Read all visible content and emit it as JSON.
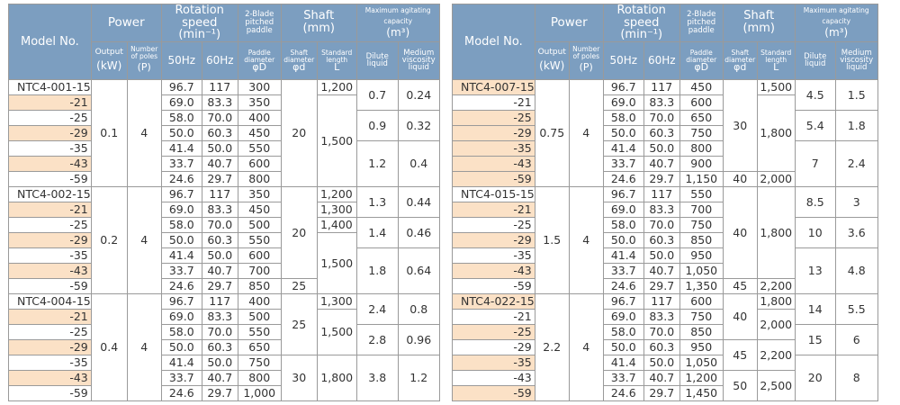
{
  "header": {
    "model": "Model No.",
    "power": "Power",
    "rotation": "Rotation speed",
    "rotation_unit": "(min⁻¹)",
    "blade": "2-Blade pitched paddle",
    "shaft": "Shaft",
    "shaft_unit": "(mm)",
    "agitating": "Maximum agitating capacity",
    "agitating_unit": "(m³)",
    "output": "Output",
    "output_unit": "(kW)",
    "poles": "Number of poles",
    "poles_unit": "(P)",
    "hz50": "50Hz",
    "hz60": "60Hz",
    "paddle_diameter": "Paddle diameter",
    "paddle_symbol": "φD",
    "shaft_diameter": "Shaft diameter",
    "shaft_symbol": "φd",
    "standard_length": "Standard length",
    "length_symbol": "L",
    "dilute": "Dilute liquid",
    "medium": "Medium viscosity liquid"
  },
  "left_table": {
    "groups": [
      {
        "output": "0.1",
        "poles": "4",
        "rows": [
          {
            "model": "NTC4-001-15",
            "hz50": "96.7",
            "hz60": "117",
            "paddle": "300"
          },
          {
            "model": "-21",
            "hz50": "69.0",
            "hz60": "83.3",
            "paddle": "350"
          },
          {
            "model": "-25",
            "hz50": "58.0",
            "hz60": "70.0",
            "paddle": "400"
          },
          {
            "model": "-29",
            "hz50": "50.0",
            "hz60": "60.3",
            "paddle": "450"
          },
          {
            "model": "-35",
            "hz50": "41.4",
            "hz60": "50.0",
            "paddle": "550"
          },
          {
            "model": "-43",
            "hz50": "33.7",
            "hz60": "40.7",
            "paddle": "600"
          },
          {
            "model": "-59",
            "hz50": "24.6",
            "hz60": "29.7",
            "paddle": "800"
          }
        ],
        "shaft_diameter": [
          "20"
        ],
        "standard_length": [
          "1,200",
          "1,500"
        ],
        "dilute": [
          "0.7",
          "0.9",
          "1.2"
        ],
        "medium": [
          "0.24",
          "0.32",
          "0.4"
        ]
      },
      {
        "output": "0.2",
        "poles": "4",
        "rows": [
          {
            "model": "NTC4-002-15",
            "hz50": "96.7",
            "hz60": "117",
            "paddle": "350"
          },
          {
            "model": "-21",
            "hz50": "69.0",
            "hz60": "83.3",
            "paddle": "450"
          },
          {
            "model": "-25",
            "hz50": "58.0",
            "hz60": "70.0",
            "paddle": "500"
          },
          {
            "model": "-29",
            "hz50": "50.0",
            "hz60": "60.3",
            "paddle": "550"
          },
          {
            "model": "-35",
            "hz50": "41.4",
            "hz60": "50.0",
            "paddle": "600"
          },
          {
            "model": "-43",
            "hz50": "33.7",
            "hz60": "40.7",
            "paddle": "700"
          },
          {
            "model": "-59",
            "hz50": "24.6",
            "hz60": "29.7",
            "paddle": "850"
          }
        ],
        "shaft_diameter": [
          "20",
          "25"
        ],
        "standard_length": [
          "1,200",
          "1,300",
          "1,400",
          "1,500"
        ],
        "dilute": [
          "1.3",
          "1.4",
          "1.8"
        ],
        "medium": [
          "0.44",
          "0.46",
          "0.64"
        ]
      },
      {
        "output": "0.4",
        "poles": "4",
        "rows": [
          {
            "model": "NTC4-004-15",
            "hz50": "96.7",
            "hz60": "117",
            "paddle": "400"
          },
          {
            "model": "-21",
            "hz50": "69.0",
            "hz60": "83.3",
            "paddle": "500"
          },
          {
            "model": "-25",
            "hz50": "58.0",
            "hz60": "70.0",
            "paddle": "550"
          },
          {
            "model": "-29",
            "hz50": "50.0",
            "hz60": "60.3",
            "paddle": "650"
          },
          {
            "model": "-35",
            "hz50": "41.4",
            "hz60": "50.0",
            "paddle": "750"
          },
          {
            "model": "-43",
            "hz50": "33.7",
            "hz60": "40.7",
            "paddle": "800"
          },
          {
            "model": "-59",
            "hz50": "24.6",
            "hz60": "29.7",
            "paddle": "1,000"
          }
        ],
        "shaft_diameter": [
          "25",
          "30"
        ],
        "standard_length": [
          "1,300",
          "1,500",
          "1,800"
        ],
        "dilute": [
          "2.4",
          "2.8",
          "3.8"
        ],
        "medium": [
          "0.8",
          "0.96",
          "1.2"
        ]
      }
    ]
  },
  "right_table": {
    "groups": [
      {
        "output": "0.75",
        "poles": "4",
        "rows": [
          {
            "model": "NTC4-007-15",
            "hz50": "96.7",
            "hz60": "117",
            "paddle": "450"
          },
          {
            "model": "-21",
            "hz50": "69.0",
            "hz60": "83.3",
            "paddle": "600"
          },
          {
            "model": "-25",
            "hz50": "58.0",
            "hz60": "70.0",
            "paddle": "650"
          },
          {
            "model": "-29",
            "hz50": "50.0",
            "hz60": "60.3",
            "paddle": "750"
          },
          {
            "model": "-35",
            "hz50": "41.4",
            "hz60": "50.0",
            "paddle": "800"
          },
          {
            "model": "-43",
            "hz50": "33.7",
            "hz60": "40.7",
            "paddle": "900"
          },
          {
            "model": "-59",
            "hz50": "24.6",
            "hz60": "29.7",
            "paddle": "1,150"
          }
        ],
        "shaft_diameter": [
          "30",
          "40"
        ],
        "standard_length": [
          "1,500",
          "1,800",
          "2,000"
        ],
        "dilute": [
          "4.5",
          "5.4",
          "7"
        ],
        "medium": [
          "1.5",
          "1.8",
          "2.4"
        ]
      },
      {
        "output": "1.5",
        "poles": "4",
        "rows": [
          {
            "model": "NTC4-015-15",
            "hz50": "96.7",
            "hz60": "117",
            "paddle": "550"
          },
          {
            "model": "-21",
            "hz50": "69.0",
            "hz60": "83.3",
            "paddle": "700"
          },
          {
            "model": "-25",
            "hz50": "58.0",
            "hz60": "70.0",
            "paddle": "750"
          },
          {
            "model": "-29",
            "hz50": "50.0",
            "hz60": "60.3",
            "paddle": "850"
          },
          {
            "model": "-35",
            "hz50": "41.4",
            "hz60": "50.0",
            "paddle": "950"
          },
          {
            "model": "-43",
            "hz50": "33.7",
            "hz60": "40.7",
            "paddle": "1,050"
          },
          {
            "model": "-59",
            "hz50": "24.6",
            "hz60": "29.7",
            "paddle": "1,350"
          }
        ],
        "shaft_diameter": [
          "40",
          "45"
        ],
        "standard_length": [
          "1,800",
          "2,200"
        ],
        "dilute": [
          "8.5",
          "10",
          "13"
        ],
        "medium": [
          "3",
          "3.6",
          "4.8"
        ]
      },
      {
        "output": "2.2",
        "poles": "4",
        "rows": [
          {
            "model": "NTC4-022-15",
            "hz50": "96.7",
            "hz60": "117",
            "paddle": "600"
          },
          {
            "model": "-21",
            "hz50": "69.0",
            "hz60": "83.3",
            "paddle": "750"
          },
          {
            "model": "-25",
            "hz50": "58.0",
            "hz60": "70.0",
            "paddle": "850"
          },
          {
            "model": "-29",
            "hz50": "50.0",
            "hz60": "60.3",
            "paddle": "950"
          },
          {
            "model": "-35",
            "hz50": "41.4",
            "hz60": "50.0",
            "paddle": "1,050"
          },
          {
            "model": "-43",
            "hz50": "33.7",
            "hz60": "40.7",
            "paddle": "1,200"
          },
          {
            "model": "-59",
            "hz50": "24.6",
            "hz60": "29.7",
            "paddle": "1,450"
          }
        ],
        "shaft_diameter": [
          "40",
          "45",
          "50"
        ],
        "standard_length": [
          "1,800",
          "2,000",
          "2,200",
          "2,500"
        ],
        "dilute": [
          "14",
          "15",
          "20"
        ],
        "medium": [
          "5.5",
          "6",
          "8"
        ]
      }
    ]
  }
}
